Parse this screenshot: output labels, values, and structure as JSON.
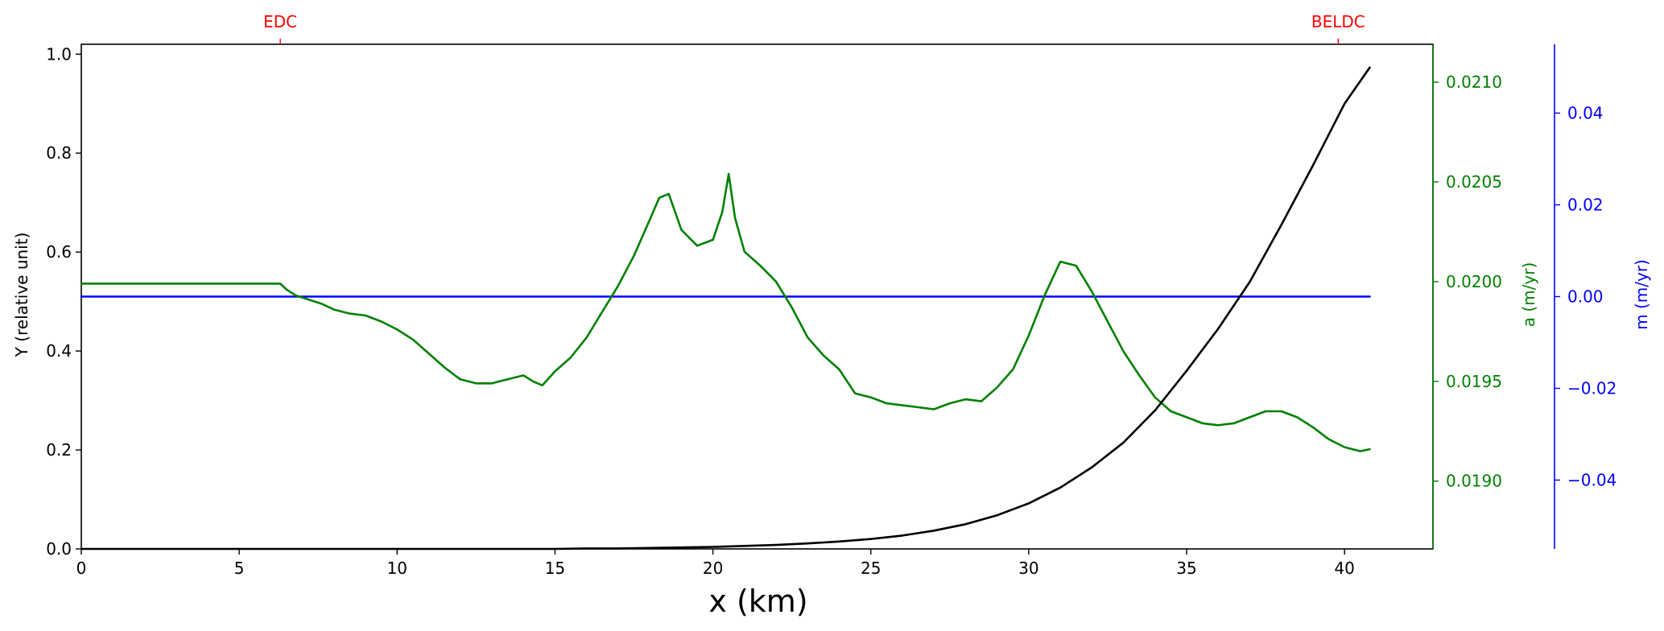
{
  "colors": {
    "y_curve": "#000000",
    "a_curve": "#008000",
    "m_curve": "#0000ff",
    "markers": "#ff0000",
    "axes": "#000000"
  },
  "chart_data": {
    "type": "line",
    "xlabel": "x (km)",
    "ylabel": "Y (relative unit)",
    "y2label": "a (m/yr)",
    "y3label": "m (m/yr)",
    "xlim": [
      0,
      42.8
    ],
    "ylim": [
      0,
      1.02
    ],
    "y2lim": [
      0.01866,
      0.02119
    ],
    "y3lim": [
      -0.055,
      0.055
    ],
    "xticks": [
      0,
      5,
      10,
      15,
      20,
      25,
      30,
      35,
      40
    ],
    "yticks": [
      "0.0",
      "0.2",
      "0.4",
      "0.6",
      "0.8",
      "1.0"
    ],
    "y2ticks": [
      "0.0190",
      "0.0195",
      "0.0200",
      "0.0205",
      "0.0210"
    ],
    "y3ticks": [
      "−0.04",
      "−0.02",
      "0.00",
      "0.02",
      "0.04"
    ],
    "y3tick_values": [
      -0.04,
      -0.02,
      0.0,
      0.02,
      0.04
    ],
    "top_markers": [
      {
        "label": "EDC",
        "x": 6.3
      },
      {
        "label": "BELDC",
        "x": 39.8
      }
    ],
    "series": [
      {
        "axis": "Y",
        "x": [
          0,
          5,
          10,
          12,
          14,
          15,
          16,
          17,
          18,
          19,
          20,
          21,
          22,
          23,
          24,
          25,
          26,
          27,
          28,
          29,
          30,
          31,
          32,
          33,
          34,
          35,
          36,
          37,
          38,
          39,
          40,
          40.8
        ],
        "y": [
          0,
          0,
          0,
          0,
          0,
          0,
          0.001,
          0.001,
          0.002,
          0.003,
          0.004,
          0.006,
          0.008,
          0.011,
          0.015,
          0.02,
          0.027,
          0.037,
          0.05,
          0.068,
          0.092,
          0.124,
          0.165,
          0.215,
          0.28,
          0.36,
          0.445,
          0.54,
          0.655,
          0.775,
          0.9,
          0.973
        ]
      },
      {
        "axis": "a",
        "x": [
          0,
          6.3,
          6.5,
          6.8,
          7.2,
          7.6,
          8.0,
          8.5,
          9.0,
          9.5,
          10.0,
          10.5,
          11.0,
          11.5,
          12.0,
          12.5,
          13.0,
          13.5,
          14.0,
          14.3,
          14.6,
          15.0,
          15.5,
          16.0,
          16.5,
          17.0,
          17.5,
          18.0,
          18.3,
          18.6,
          19.0,
          19.5,
          20.0,
          20.3,
          20.5,
          20.7,
          21.0,
          21.5,
          22.0,
          22.5,
          23.0,
          23.5,
          24.0,
          24.5,
          25.0,
          25.5,
          26.0,
          26.5,
          27.0,
          27.5,
          28.0,
          28.5,
          29.0,
          29.5,
          30.0,
          30.5,
          31.0,
          31.5,
          32.0,
          32.5,
          33.0,
          33.5,
          34.0,
          34.5,
          35.0,
          35.5,
          36.0,
          36.5,
          37.0,
          37.5,
          38.0,
          38.5,
          39.0,
          39.5,
          40.0,
          40.5,
          40.8
        ],
        "y": [
          0.01999,
          0.01999,
          0.01996,
          0.01993,
          0.01991,
          0.01989,
          0.01986,
          0.01984,
          0.01983,
          0.0198,
          0.01976,
          0.01971,
          0.01964,
          0.01957,
          0.01951,
          0.01949,
          0.01949,
          0.01951,
          0.01953,
          0.0195,
          0.01948,
          0.01955,
          0.01962,
          0.01972,
          0.01985,
          0.01998,
          0.02013,
          0.02031,
          0.02042,
          0.02044,
          0.02026,
          0.02018,
          0.02021,
          0.02035,
          0.02054,
          0.02032,
          0.02015,
          0.02008,
          0.02,
          0.01987,
          0.01972,
          0.01963,
          0.01956,
          0.01944,
          0.01942,
          0.01939,
          0.01938,
          0.01937,
          0.01936,
          0.01939,
          0.01941,
          0.0194,
          0.01947,
          0.01956,
          0.01973,
          0.01993,
          0.0201,
          0.02008,
          0.01995,
          0.0198,
          0.01965,
          0.01953,
          0.01942,
          0.01935,
          0.01932,
          0.01929,
          0.01928,
          0.01929,
          0.01932,
          0.01935,
          0.01935,
          0.01932,
          0.01927,
          0.01921,
          0.01917,
          0.01915,
          0.01916
        ]
      },
      {
        "axis": "m",
        "x": [
          0,
          40.8
        ],
        "y": [
          0.0,
          0.0
        ]
      }
    ]
  }
}
